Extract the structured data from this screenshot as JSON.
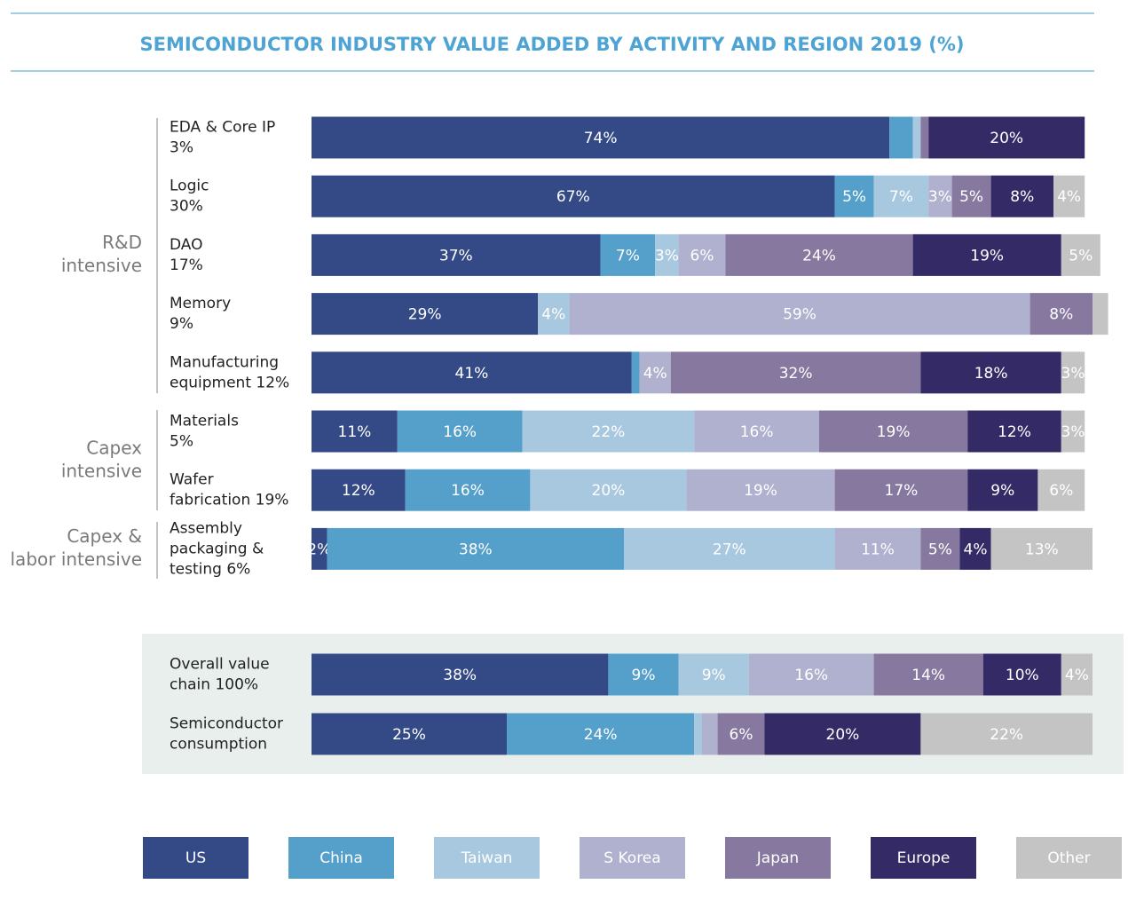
{
  "chart_data": {
    "type": "stacked-bar",
    "orientation": "horizontal",
    "title": "SEMICONDUCTOR INDUSTRY VALUE ADDED BY ACTIVITY AND REGION 2019 (%)",
    "groups": [
      [
        "R&D",
        "intensive"
      ],
      [
        "Capex",
        "intensive"
      ],
      [
        "Capex &",
        "labor intensive"
      ]
    ],
    "categories": [
      [
        "EDA & Core IP",
        "3%"
      ],
      [
        "Logic",
        "30%"
      ],
      [
        "DAO",
        "17%"
      ],
      [
        "Memory",
        "9%"
      ],
      [
        "Manufacturing",
        "equipment 12%"
      ],
      [
        "Materials",
        "5%"
      ],
      [
        "Wafer",
        "fabrication 19%"
      ],
      [
        "Assembly",
        "packaging &",
        "testing 6%"
      ],
      [
        "Overall value",
        "chain 100%"
      ],
      [
        "Semiconductor",
        "consumption"
      ]
    ],
    "xlim": [
      0,
      100
    ],
    "legend": "bottom",
    "series": [
      {
        "name": "US",
        "color": "#344a86",
        "values": [
          74,
          67,
          37,
          29,
          41,
          11,
          12,
          2,
          38,
          25
        ],
        "value_labels": [
          "74%",
          "67%",
          "37%",
          "29%",
          "41%",
          "11%",
          "12%",
          "2%",
          "38%",
          "25%"
        ]
      },
      {
        "name": "China",
        "color": "#55a0cb",
        "values": [
          3,
          5,
          7,
          0,
          1,
          16,
          16,
          38,
          9,
          24
        ],
        "value_labels": [
          null,
          "5%",
          "7%",
          null,
          null,
          "16%",
          "16%",
          "38%",
          "9%",
          "24%"
        ]
      },
      {
        "name": "Taiwan",
        "color": "#a8c8e0",
        "values": [
          1,
          7,
          3,
          4,
          0,
          22,
          20,
          27,
          9,
          1
        ],
        "value_labels": [
          null,
          "7%",
          "3%",
          "4%",
          null,
          "22%",
          "20%",
          "27%",
          "9%",
          null
        ]
      },
      {
        "name": "S Korea",
        "color": "#b0b0cf",
        "values": [
          0,
          3,
          6,
          59,
          4,
          16,
          19,
          11,
          16,
          2
        ],
        "value_labels": [
          null,
          "3%",
          "6%",
          "59%",
          "4%",
          "16%",
          "19%",
          "11%",
          "16%",
          null
        ]
      },
      {
        "name": "Japan",
        "color": "#87789f",
        "values": [
          1,
          5,
          24,
          8,
          32,
          19,
          17,
          5,
          14,
          6
        ],
        "value_labels": [
          null,
          "5%",
          "24%",
          "8%",
          "32%",
          "19%",
          "17%",
          "5%",
          "14%",
          "6%"
        ]
      },
      {
        "name": "Europe",
        "color": "#332a66",
        "values": [
          20,
          8,
          19,
          0,
          18,
          12,
          9,
          4,
          10,
          20
        ],
        "value_labels": [
          "20%",
          "8%",
          "19%",
          null,
          "18%",
          "12%",
          "9%",
          "4%",
          "10%",
          "20%"
        ]
      },
      {
        "name": "Other",
        "color": "#c4c4c4",
        "values": [
          0,
          4,
          5,
          2,
          3,
          3,
          6,
          13,
          4,
          22
        ],
        "value_labels": [
          null,
          "4%",
          "5%",
          null,
          "3%",
          "3%",
          "6%",
          "13%",
          "4%",
          "22%"
        ]
      }
    ]
  }
}
